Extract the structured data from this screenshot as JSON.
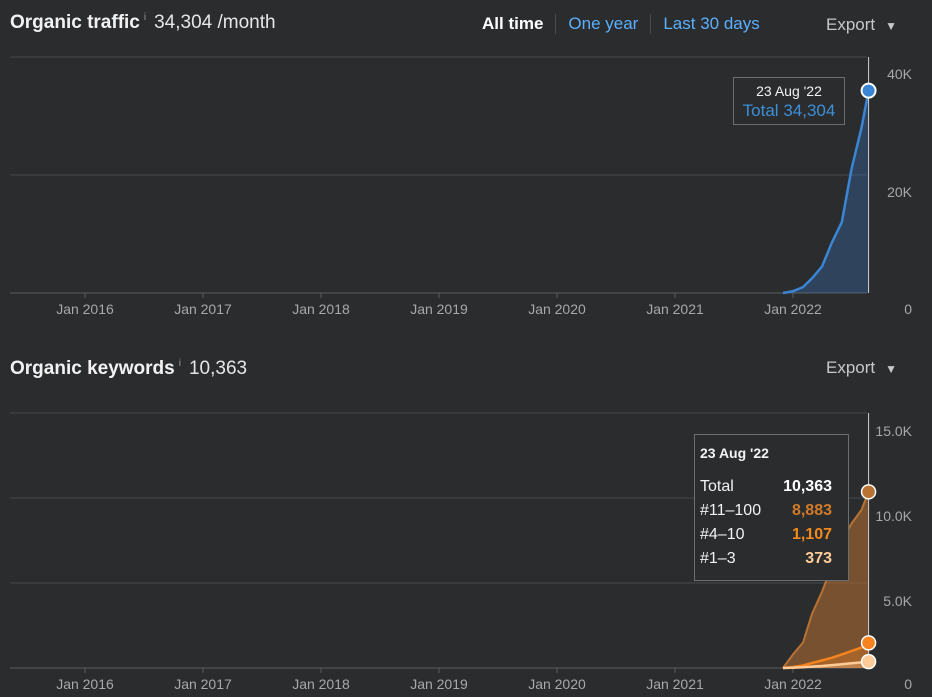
{
  "traffic": {
    "title": "Organic traffic",
    "info": "i",
    "value": "34,304 /month",
    "export_label": "Export",
    "tabs": [
      {
        "label": "All time",
        "active": true
      },
      {
        "label": "One year",
        "active": false
      },
      {
        "label": "Last 30 days",
        "active": false
      }
    ],
    "tooltip": {
      "date": "23 Aug '22",
      "total_label": "Total",
      "total_value": "34,304"
    }
  },
  "keywords": {
    "title": "Organic keywords",
    "info": "i",
    "value": "10,363",
    "export_label": "Export",
    "tooltip": {
      "date": "23 Aug '22",
      "rows": [
        {
          "label": "Total",
          "value": "10,363",
          "color": "#ffffff"
        },
        {
          "label": "#11–100",
          "value": "8,883",
          "color": "#d17a29"
        },
        {
          "label": "#4–10",
          "value": "1,107",
          "color": "#f28a1e"
        },
        {
          "label": "#1–3",
          "value": "373",
          "color": "#ffcc99"
        }
      ]
    }
  },
  "colors": {
    "blue": "#3a86d4",
    "orange_dark": "#b87233",
    "orange": "#f5841f",
    "orange_light": "#ffcb99"
  },
  "chart_data": [
    {
      "type": "area",
      "title": "Organic traffic",
      "x_ticks": [
        "Jan 2016",
        "Jan 2017",
        "Jan 2018",
        "Jan 2019",
        "Jan 2020",
        "Jan 2021",
        "Jan 2022"
      ],
      "y_ticks": [
        "40K",
        "20K",
        "0"
      ],
      "ylim": [
        0,
        40000
      ],
      "grid": true,
      "series": [
        {
          "x": [
            "2021-12-01",
            "2022-01-01",
            "2022-02-01",
            "2022-03-01",
            "2022-04-01",
            "2022-05-01",
            "2022-06-01",
            "2022-07-01",
            "2022-08-01",
            "2022-08-23"
          ],
          "values": [
            0,
            300,
            1000,
            2500,
            4500,
            8500,
            12000,
            21000,
            28000,
            34304
          ]
        }
      ],
      "marker": {
        "x": "2022-08-23",
        "value": 34304
      }
    },
    {
      "type": "area",
      "title": "Organic keywords",
      "x_ticks": [
        "Jan 2016",
        "Jan 2017",
        "Jan 2018",
        "Jan 2019",
        "Jan 2020",
        "Jan 2021",
        "Jan 2022"
      ],
      "y_ticks": [
        "15.0K",
        "10.0K",
        "5.0K",
        "0"
      ],
      "ylim": [
        0,
        15000
      ],
      "grid": true,
      "series": [
        {
          "name": "Total",
          "x": [
            "2021-12-01",
            "2022-01-01",
            "2022-02-01",
            "2022-03-01",
            "2022-04-01",
            "2022-05-01",
            "2022-06-01",
            "2022-07-01",
            "2022-08-01",
            "2022-08-23"
          ],
          "values": [
            0,
            800,
            1500,
            3200,
            4500,
            6000,
            7500,
            8500,
            9300,
            10363
          ]
        },
        {
          "name": "#4–10",
          "x": [
            "2021-12-01",
            "2022-01-01",
            "2022-02-01",
            "2022-03-01",
            "2022-04-01",
            "2022-05-01",
            "2022-06-01",
            "2022-07-01",
            "2022-08-01",
            "2022-08-23"
          ],
          "values": [
            0,
            50,
            150,
            300,
            450,
            600,
            800,
            1000,
            1200,
            1480
          ]
        },
        {
          "name": "#1–3",
          "x": [
            "2021-12-01",
            "2022-01-01",
            "2022-02-01",
            "2022-03-01",
            "2022-04-01",
            "2022-05-01",
            "2022-06-01",
            "2022-07-01",
            "2022-08-01",
            "2022-08-23"
          ],
          "values": [
            0,
            10,
            40,
            80,
            120,
            170,
            220,
            280,
            330,
            373
          ]
        }
      ],
      "marker": {
        "x": "2022-08-23",
        "values": [
          10363,
          1480,
          373
        ]
      }
    }
  ]
}
